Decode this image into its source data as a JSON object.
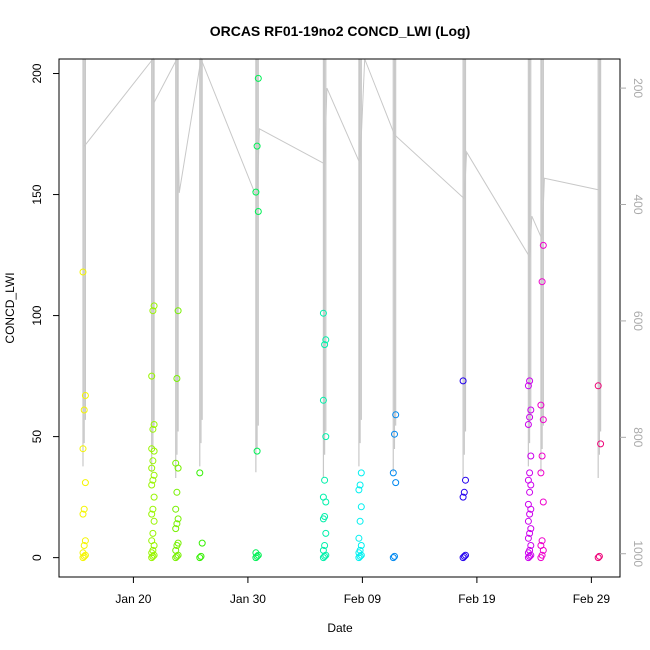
{
  "chart_data": {
    "type": "scatter",
    "title": "ORCAS RF01-19no2 CONCD_LWI (Log)",
    "xlabel": "Date",
    "ylabel": "CONCD_LWI",
    "x_ticks": [
      "Jan 20",
      "Jan 30",
      "Feb 09",
      "Feb 19",
      "Feb 29"
    ],
    "y_ticks": [
      0,
      50,
      100,
      150,
      200
    ],
    "y_right_ticks": [
      200,
      400,
      600,
      800,
      1000
    ],
    "xlim_days_from_jan20": [
      -6.5,
      42.5
    ],
    "ylim": [
      -8,
      206
    ],
    "y_right_lim": [
      1040,
      150
    ],
    "flights": [
      {
        "x": -4.3,
        "color": "#f5f500",
        "y": [
          0,
          0.5,
          1,
          2,
          5,
          7,
          18,
          20,
          31,
          45,
          61,
          67,
          118
        ]
      },
      {
        "x": 1.7,
        "color": "#99f500",
        "y": [
          0,
          0.5,
          1,
          2,
          3,
          5,
          7,
          10,
          15,
          18,
          20,
          25,
          30,
          32,
          34,
          37,
          40,
          44,
          45,
          53,
          55,
          75,
          102,
          104
        ]
      },
      {
        "x": 3.8,
        "color": "#77f000",
        "y": [
          0,
          0.5,
          1,
          3,
          5,
          6,
          12,
          14,
          16,
          20,
          27,
          37,
          39,
          74,
          102
        ]
      },
      {
        "x": 5.9,
        "color": "#33f000",
        "y": [
          0,
          0.5,
          6,
          35
        ]
      },
      {
        "x": 10.8,
        "color": "#00f055",
        "y": [
          0,
          0.5,
          1,
          2,
          44,
          143,
          151,
          170,
          198
        ]
      },
      {
        "x": 16.7,
        "color": "#00f0aa",
        "y": [
          0,
          0.5,
          1,
          3,
          5,
          10,
          16,
          17,
          23,
          25,
          32,
          50,
          65,
          88,
          90,
          101
        ]
      },
      {
        "x": 19.8,
        "color": "#00f0f0",
        "y": [
          0,
          0.5,
          1,
          2,
          3,
          5,
          8,
          15,
          21,
          28,
          30,
          35
        ]
      },
      {
        "x": 22.8,
        "color": "#0088f0",
        "y": [
          0,
          0.5,
          31,
          35,
          51,
          59
        ]
      },
      {
        "x": 28.9,
        "color": "#2200ee",
        "y": [
          0,
          0.5,
          1,
          25,
          27,
          32,
          73
        ]
      },
      {
        "x": 34.6,
        "color": "#cc00ee",
        "y": [
          0,
          0.5,
          1,
          2,
          3,
          5,
          8,
          10,
          12,
          15,
          18,
          20,
          22,
          27,
          30,
          32,
          35,
          42,
          55,
          58,
          61,
          71,
          73
        ]
      },
      {
        "x": 35.7,
        "color": "#ee00cc",
        "y": [
          0,
          1,
          3,
          5,
          7,
          23,
          35,
          42,
          57,
          63,
          114,
          129
        ]
      },
      {
        "x": 40.7,
        "color": "#ee0077",
        "y": [
          0,
          0.5,
          47,
          71
        ]
      }
    ],
    "pressure_trace": [
      {
        "x": -4.3,
        "p": 300
      },
      {
        "x": 1.7,
        "p": 150
      },
      {
        "x": 1.8,
        "p": 225
      },
      {
        "x": 3.8,
        "p": 150
      },
      {
        "x": 4.0,
        "p": 380
      },
      {
        "x": 5.9,
        "p": 150
      },
      {
        "x": 10.8,
        "p": 390
      },
      {
        "x": 11.0,
        "p": 270
      },
      {
        "x": 16.7,
        "p": 330
      },
      {
        "x": 16.9,
        "p": 200
      },
      {
        "x": 19.8,
        "p": 330
      },
      {
        "x": 20.2,
        "p": 150
      },
      {
        "x": 22.8,
        "p": 280
      },
      {
        "x": 28.9,
        "p": 390
      },
      {
        "x": 29.1,
        "p": 310
      },
      {
        "x": 34.6,
        "p": 490
      },
      {
        "x": 34.8,
        "p": 420
      },
      {
        "x": 35.7,
        "p": 460
      },
      {
        "x": 35.9,
        "p": 355
      },
      {
        "x": 40.7,
        "p": 375
      }
    ]
  }
}
